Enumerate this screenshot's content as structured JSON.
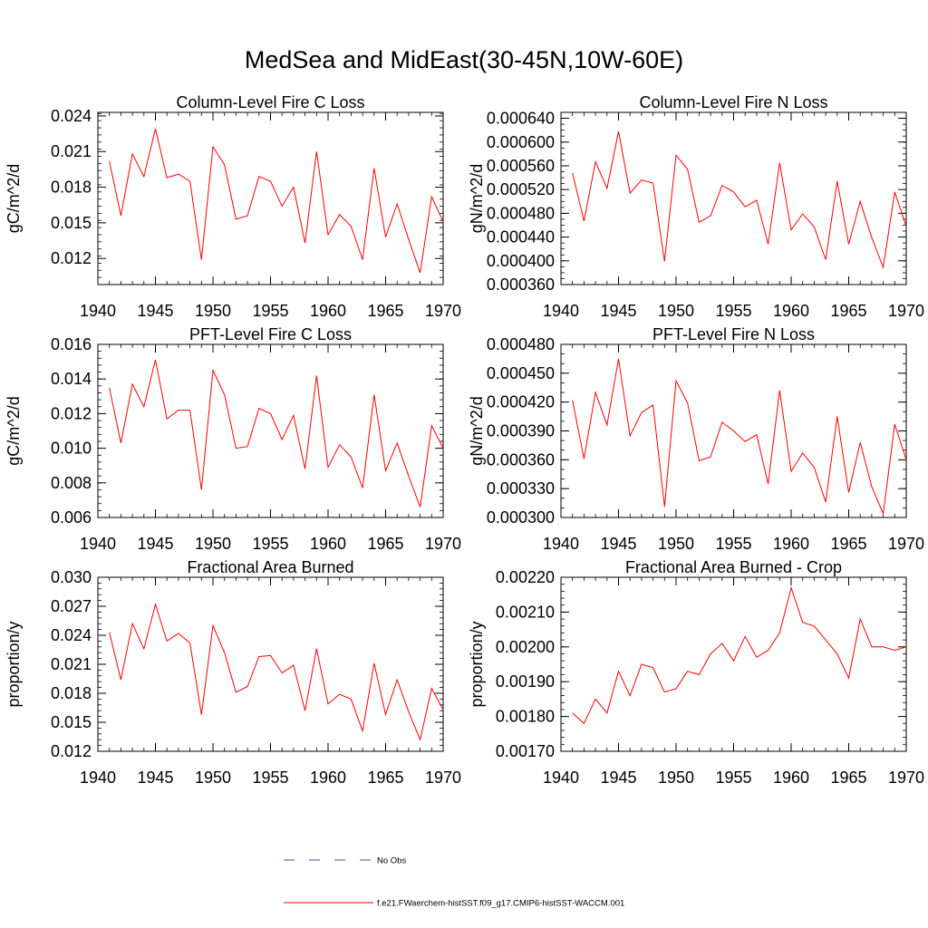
{
  "figure": {
    "title": "MedSea and MidEast(30-45N,10W-60E)"
  },
  "legend": {
    "items": [
      {
        "label": "No Obs",
        "color": "#4a4aa8",
        "style": "dashed"
      },
      {
        "label": "f.e21.FWaerchem-histSST.f09_g17.CMIP6-histSST-WACCM.001",
        "color": "#ff0000",
        "style": "solid"
      }
    ]
  },
  "chart_data": [
    {
      "type": "line",
      "title": "Column-Level Fire C Loss",
      "ylabel": "gC/m^2/d",
      "xlabel": "",
      "xlim": [
        1940,
        1970
      ],
      "ylim": [
        0.0098,
        0.0243
      ],
      "x_ticks": [
        1940,
        1945,
        1950,
        1955,
        1960,
        1965,
        1970
      ],
      "x_tick_labels": [
        "1940",
        "1945",
        "1950",
        "1955",
        "1960",
        "1965",
        "1970"
      ],
      "y_ticks": [
        0.012,
        0.015,
        0.018,
        0.021,
        0.024
      ],
      "y_tick_labels": [
        "0.012",
        "0.015",
        "0.018",
        "0.021",
        "0.024"
      ],
      "y_minor_step": 0.0006,
      "series": [
        {
          "color": "#ff0000",
          "x": [
            1941,
            1942,
            1943,
            1944,
            1945,
            1946,
            1947,
            1948,
            1949,
            1950,
            1951,
            1952,
            1953,
            1954,
            1955,
            1956,
            1957,
            1958,
            1959,
            1960,
            1961,
            1962,
            1963,
            1964,
            1965,
            1966,
            1967,
            1968,
            1969,
            1970
          ],
          "values": [
            0.0202,
            0.0156,
            0.0208,
            0.0189,
            0.0229,
            0.0188,
            0.0191,
            0.0185,
            0.0119,
            0.0214,
            0.0199,
            0.0153,
            0.0156,
            0.0189,
            0.0185,
            0.0164,
            0.018,
            0.0133,
            0.021,
            0.014,
            0.0157,
            0.0147,
            0.0119,
            0.0196,
            0.0138,
            0.0166,
            0.0136,
            0.0108,
            0.0172,
            0.0151
          ]
        }
      ]
    },
    {
      "type": "line",
      "title": "Column-Level Fire N Loss",
      "ylabel": "gN/m^2/d",
      "xlabel": "",
      "xlim": [
        1940,
        1970
      ],
      "ylim": [
        0.00036,
        0.00065
      ],
      "x_ticks": [
        1940,
        1945,
        1950,
        1955,
        1960,
        1965,
        1970
      ],
      "x_tick_labels": [
        "1940",
        "1945",
        "1950",
        "1955",
        "1960",
        "1965",
        "1970"
      ],
      "y_ticks": [
        0.00036,
        0.0004,
        0.00044,
        0.00048,
        0.00052,
        0.00056,
        0.0006,
        0.00064
      ],
      "y_tick_labels": [
        "0.000360",
        "0.000400",
        "0.000440",
        "0.000480",
        "0.000520",
        "0.000560",
        "0.000600",
        "0.000640"
      ],
      "y_minor_step": 1e-05,
      "series": [
        {
          "color": "#ff0000",
          "x": [
            1941,
            1942,
            1943,
            1944,
            1945,
            1946,
            1947,
            1948,
            1949,
            1950,
            1951,
            1952,
            1953,
            1954,
            1955,
            1956,
            1957,
            1958,
            1959,
            1960,
            1961,
            1962,
            1963,
            1964,
            1965,
            1966,
            1967,
            1968,
            1969,
            1970
          ],
          "values": [
            0.000548,
            0.000467,
            0.000567,
            0.000522,
            0.000618,
            0.000514,
            0.000536,
            0.000531,
            0.000399,
            0.000578,
            0.000554,
            0.000465,
            0.000476,
            0.000527,
            0.000516,
            0.000491,
            0.000502,
            0.000428,
            0.000565,
            0.000452,
            0.000479,
            0.000457,
            0.000402,
            0.000534,
            0.000428,
            0.0005,
            0.000439,
            0.000389,
            0.000516,
            0.000458
          ]
        }
      ]
    },
    {
      "type": "line",
      "title": "PFT-Level Fire C Loss",
      "ylabel": "gC/m^2/d",
      "xlabel": "",
      "xlim": [
        1940,
        1970
      ],
      "ylim": [
        0.006,
        0.016
      ],
      "x_ticks": [
        1940,
        1945,
        1950,
        1955,
        1960,
        1965,
        1970
      ],
      "x_tick_labels": [
        "1940",
        "1945",
        "1950",
        "1955",
        "1960",
        "1965",
        "1970"
      ],
      "y_ticks": [
        0.006,
        0.008,
        0.01,
        0.012,
        0.014,
        0.016
      ],
      "y_tick_labels": [
        "0.006",
        "0.008",
        "0.010",
        "0.012",
        "0.014",
        "0.016"
      ],
      "y_minor_step": 0.0004,
      "series": [
        {
          "color": "#ff0000",
          "x": [
            1941,
            1942,
            1943,
            1944,
            1945,
            1946,
            1947,
            1948,
            1949,
            1950,
            1951,
            1952,
            1953,
            1954,
            1955,
            1956,
            1957,
            1958,
            1959,
            1960,
            1961,
            1962,
            1963,
            1964,
            1965,
            1966,
            1967,
            1968,
            1969,
            1970
          ],
          "values": [
            0.0135,
            0.0103,
            0.0137,
            0.0124,
            0.0151,
            0.0117,
            0.0122,
            0.0122,
            0.0076,
            0.0145,
            0.0131,
            0.01,
            0.0101,
            0.0123,
            0.012,
            0.0105,
            0.0119,
            0.0088,
            0.0142,
            0.0089,
            0.0102,
            0.0095,
            0.0077,
            0.0131,
            0.0087,
            0.0103,
            0.0084,
            0.0066,
            0.0113,
            0.01
          ]
        }
      ]
    },
    {
      "type": "line",
      "title": "PFT-Level Fire N Loss",
      "ylabel": "gN/m^2/d",
      "xlabel": "",
      "xlim": [
        1940,
        1970
      ],
      "ylim": [
        0.0003,
        0.00048
      ],
      "x_ticks": [
        1940,
        1945,
        1950,
        1955,
        1960,
        1965,
        1970
      ],
      "x_tick_labels": [
        "1940",
        "1945",
        "1950",
        "1955",
        "1960",
        "1965",
        "1970"
      ],
      "y_ticks": [
        0.0003,
        0.00033,
        0.00036,
        0.00039,
        0.00042,
        0.00045,
        0.00048
      ],
      "y_tick_labels": [
        "0.000300",
        "0.000330",
        "0.000360",
        "0.000390",
        "0.000420",
        "0.000450",
        "0.000480"
      ],
      "y_minor_step": 1e-05,
      "series": [
        {
          "color": "#ff0000",
          "x": [
            1941,
            1942,
            1943,
            1944,
            1945,
            1946,
            1947,
            1948,
            1949,
            1950,
            1951,
            1952,
            1953,
            1954,
            1955,
            1956,
            1957,
            1958,
            1959,
            1960,
            1961,
            1962,
            1963,
            1964,
            1965,
            1966,
            1967,
            1968,
            1969,
            1970
          ],
          "values": [
            0.000422,
            0.000361,
            0.00043,
            0.000396,
            0.000465,
            0.000385,
            0.000409,
            0.000417,
            0.000311,
            0.000442,
            0.000419,
            0.000359,
            0.000363,
            0.000399,
            0.00039,
            0.000379,
            0.000386,
            0.000335,
            0.000432,
            0.000348,
            0.000367,
            0.000352,
            0.000316,
            0.000405,
            0.000326,
            0.000378,
            0.000332,
            0.000304,
            0.000397,
            0.00036
          ]
        }
      ]
    },
    {
      "type": "line",
      "title": "Fractional Area Burned",
      "ylabel": "proportion/y",
      "xlabel": "",
      "xlim": [
        1940,
        1970
      ],
      "ylim": [
        0.012,
        0.03
      ],
      "x_ticks": [
        1940,
        1945,
        1950,
        1955,
        1960,
        1965,
        1970
      ],
      "x_tick_labels": [
        "1940",
        "1945",
        "1950",
        "1955",
        "1960",
        "1965",
        "1970"
      ],
      "y_ticks": [
        0.012,
        0.015,
        0.018,
        0.021,
        0.024,
        0.027,
        0.03
      ],
      "y_tick_labels": [
        "0.012",
        "0.015",
        "0.018",
        "0.021",
        "0.024",
        "0.027",
        "0.030"
      ],
      "y_minor_step": 0.0006,
      "series": [
        {
          "color": "#ff0000",
          "x": [
            1941,
            1942,
            1943,
            1944,
            1945,
            1946,
            1947,
            1948,
            1949,
            1950,
            1951,
            1952,
            1953,
            1954,
            1955,
            1956,
            1957,
            1958,
            1959,
            1960,
            1961,
            1962,
            1963,
            1964,
            1965,
            1966,
            1967,
            1968,
            1969,
            1970
          ],
          "values": [
            0.0243,
            0.0194,
            0.0252,
            0.0226,
            0.0272,
            0.0234,
            0.0242,
            0.0232,
            0.0158,
            0.025,
            0.0222,
            0.0181,
            0.0187,
            0.0218,
            0.0219,
            0.0201,
            0.0209,
            0.0162,
            0.0226,
            0.0169,
            0.0179,
            0.0174,
            0.0141,
            0.0211,
            0.0158,
            0.0194,
            0.0161,
            0.0132,
            0.0185,
            0.0163
          ]
        }
      ]
    },
    {
      "type": "line",
      "title": "Fractional Area Burned - Crop",
      "ylabel": "proportion/y",
      "xlabel": "",
      "xlim": [
        1940,
        1970
      ],
      "ylim": [
        0.0017,
        0.0022
      ],
      "x_ticks": [
        1940,
        1945,
        1950,
        1955,
        1960,
        1965,
        1970
      ],
      "x_tick_labels": [
        "1940",
        "1945",
        "1950",
        "1955",
        "1960",
        "1965",
        "1970"
      ],
      "y_ticks": [
        0.0017,
        0.0018,
        0.0019,
        0.002,
        0.0021,
        0.0022
      ],
      "y_tick_labels": [
        "0.00170",
        "0.00180",
        "0.00190",
        "0.00200",
        "0.00210",
        "0.00220"
      ],
      "y_minor_step": 2e-05,
      "series": [
        {
          "color": "#ff0000",
          "x": [
            1941,
            1942,
            1943,
            1944,
            1945,
            1946,
            1947,
            1948,
            1949,
            1950,
            1951,
            1952,
            1953,
            1954,
            1955,
            1956,
            1957,
            1958,
            1959,
            1960,
            1961,
            1962,
            1963,
            1964,
            1965,
            1966,
            1967,
            1968,
            1969,
            1970
          ],
          "values": [
            0.00181,
            0.00178,
            0.00185,
            0.00181,
            0.00193,
            0.00186,
            0.00195,
            0.00194,
            0.00187,
            0.00188,
            0.00193,
            0.00192,
            0.00198,
            0.00201,
            0.00196,
            0.00203,
            0.00197,
            0.00199,
            0.00204,
            0.00217,
            0.00207,
            0.00206,
            0.00202,
            0.00198,
            0.00191,
            0.00208,
            0.002,
            0.002,
            0.00199,
            0.002
          ]
        }
      ]
    }
  ]
}
